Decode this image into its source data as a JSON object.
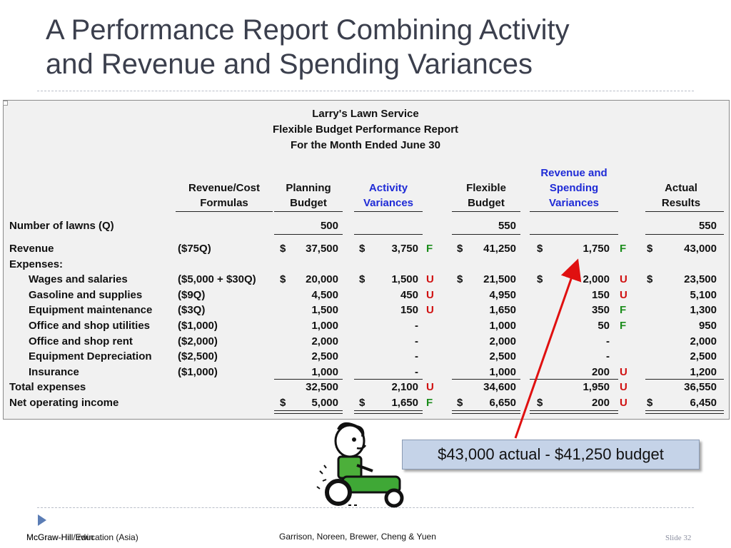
{
  "slide": {
    "title_line1": "A Performance Report Combining Activity",
    "title_line2": "and Revenue and Spending Variances"
  },
  "report": {
    "company": "Larry's Lawn Service",
    "report_name": "Flexible Budget Performance Report",
    "period": "For the Month Ended June 30",
    "columns": {
      "formulas": [
        "Revenue/Cost",
        "Formulas"
      ],
      "planning": [
        "Planning",
        "Budget"
      ],
      "activity": [
        "Activity",
        "Variances"
      ],
      "flexible": [
        "Flexible",
        "Budget"
      ],
      "revspend": [
        "Revenue and",
        "Spending",
        "Variances"
      ],
      "actual": [
        "Actual",
        "Results"
      ]
    },
    "rows": [
      {
        "label": "Number of lawns (Q)",
        "formula": "",
        "planning": "500",
        "activity": "",
        "activity_fu": "",
        "flexible": "550",
        "revspend": "",
        "revspend_fu": "",
        "actual": "550"
      },
      {
        "label": "Revenue",
        "formula": "($75Q)",
        "planning": "37,500",
        "activity": "3,750",
        "activity_fu": "F",
        "flexible": "41,250",
        "revspend": "1,750",
        "revspend_fu": "F",
        "actual": "43,000"
      },
      {
        "label": "Expenses:",
        "formula": "",
        "planning": "",
        "activity": "",
        "activity_fu": "",
        "flexible": "",
        "revspend": "",
        "revspend_fu": "",
        "actual": ""
      },
      {
        "label": "Wages and salaries",
        "formula": "($5,000 + $30Q)",
        "planning": "20,000",
        "activity": "1,500",
        "activity_fu": "U",
        "flexible": "21,500",
        "revspend": "2,000",
        "revspend_fu": "U",
        "actual": "23,500"
      },
      {
        "label": "Gasoline and supplies",
        "formula": "($9Q)",
        "planning": "4,500",
        "activity": "450",
        "activity_fu": "U",
        "flexible": "4,950",
        "revspend": "150",
        "revspend_fu": "U",
        "actual": "5,100"
      },
      {
        "label": "Equipment maintenance",
        "formula": "($3Q)",
        "planning": "1,500",
        "activity": "150",
        "activity_fu": "U",
        "flexible": "1,650",
        "revspend": "350",
        "revspend_fu": "F",
        "actual": "1,300"
      },
      {
        "label": "Office and shop utilities",
        "formula": "($1,000)",
        "planning": "1,000",
        "activity": "-",
        "activity_fu": "",
        "flexible": "1,000",
        "revspend": "50",
        "revspend_fu": "F",
        "actual": "950"
      },
      {
        "label": "Office and shop rent",
        "formula": "($2,000)",
        "planning": "2,000",
        "activity": "-",
        "activity_fu": "",
        "flexible": "2,000",
        "revspend": "-",
        "revspend_fu": "",
        "actual": "2,000"
      },
      {
        "label": "Equipment Depreciation",
        "formula": "($2,500)",
        "planning": "2,500",
        "activity": "-",
        "activity_fu": "",
        "flexible": "2,500",
        "revspend": "-",
        "revspend_fu": "",
        "actual": "2,500"
      },
      {
        "label": "Insurance",
        "formula": "($1,000)",
        "planning": "1,000",
        "activity": "-",
        "activity_fu": "",
        "flexible": "1,000",
        "revspend": "200",
        "revspend_fu": "U",
        "actual": "1,200"
      },
      {
        "label": "Total expenses",
        "formula": "",
        "planning": "32,500",
        "activity": "2,100",
        "activity_fu": "U",
        "flexible": "34,600",
        "revspend": "1,950",
        "revspend_fu": "U",
        "actual": "36,550"
      },
      {
        "label": "Net operating income",
        "formula": "",
        "planning": "5,000",
        "activity": "1,650",
        "activity_fu": "F",
        "flexible": "6,650",
        "revspend": "200",
        "revspend_fu": "U",
        "actual": "6,450"
      }
    ],
    "dollar_sign": "$",
    "colors": {
      "favorable": "#1a8c1a",
      "unfavorable": "#d01010",
      "blue_header": "#1f2bd6"
    }
  },
  "callout": {
    "text": "$43,000 actual -  $41,250 budget"
  },
  "footer": {
    "publisher_a": "McGraw-Hill/Irwin",
    "publisher_b": "McGraw-Hill Education (Asia)",
    "authors": "Garrison, Noreen, Brewer, Cheng & Yuen",
    "slide_label": "Slide 32"
  },
  "icons": {
    "mower": "lawn-mower-cartoon-icon",
    "bullet": "triangle-bullet-icon"
  }
}
